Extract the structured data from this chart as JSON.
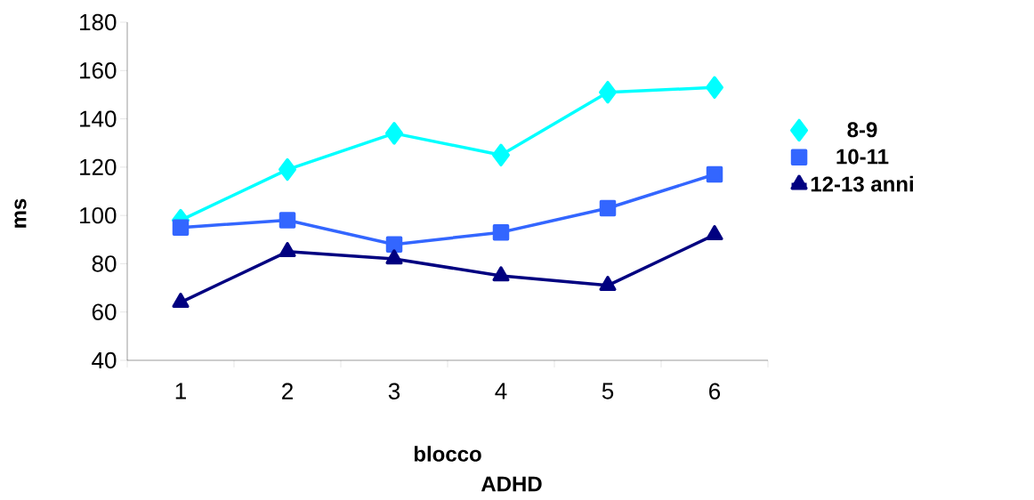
{
  "chart_data": {
    "type": "line",
    "xlabel": "blocco",
    "ylabel": "ms",
    "annotations": [
      "ADHD"
    ],
    "categories": [
      "1",
      "2",
      "3",
      "4",
      "5",
      "6"
    ],
    "series": [
      {
        "name": "8-9",
        "color": "#00ffff",
        "marker": "diamond",
        "values": [
          98,
          119,
          134,
          125,
          151,
          153
        ]
      },
      {
        "name": "10-11",
        "color": "#3366ff",
        "marker": "square",
        "values": [
          95,
          98,
          88,
          93,
          103,
          117
        ]
      },
      {
        "name": "12-13 anni",
        "color": "#000080",
        "marker": "triangle",
        "values": [
          64,
          85,
          82,
          75,
          71,
          92
        ]
      }
    ],
    "ylim": [
      40,
      180
    ],
    "yticks": [
      40,
      60,
      80,
      100,
      120,
      140,
      160,
      180
    ],
    "grid": false,
    "legend": "right",
    "line_style": "solid"
  }
}
